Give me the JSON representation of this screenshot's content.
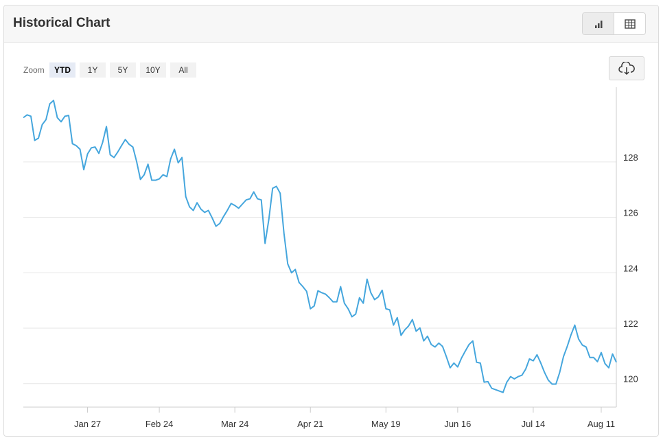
{
  "header": {
    "title": "Historical Chart"
  },
  "zoom": {
    "label": "Zoom",
    "options": [
      "YTD",
      "1Y",
      "5Y",
      "10Y",
      "All"
    ],
    "selected": "YTD"
  },
  "chart_data": {
    "type": "line",
    "color": "#45a6dd",
    "grid": true,
    "y_axis_side": "right",
    "ylim": [
      119.15,
      130.7
    ],
    "yticks": [
      120,
      122,
      124,
      126,
      128
    ],
    "categories": [
      null,
      null,
      null,
      null,
      null,
      null,
      null,
      null,
      null,
      null,
      null,
      null,
      null,
      null,
      null,
      null,
      null,
      "Jan 27",
      null,
      null,
      null,
      null,
      null,
      null,
      null,
      null,
      null,
      null,
      null,
      null,
      null,
      null,
      null,
      null,
      null,
      null,
      "Feb 24",
      null,
      null,
      null,
      null,
      null,
      null,
      null,
      null,
      null,
      null,
      null,
      null,
      null,
      null,
      null,
      null,
      null,
      null,
      null,
      "Mar 24",
      null,
      null,
      null,
      null,
      null,
      null,
      null,
      null,
      null,
      null,
      null,
      null,
      null,
      null,
      null,
      null,
      null,
      null,
      null,
      "Apr 21",
      null,
      null,
      null,
      null,
      null,
      null,
      null,
      null,
      null,
      null,
      null,
      null,
      null,
      null,
      null,
      null,
      null,
      null,
      null,
      "May 19",
      null,
      null,
      null,
      null,
      null,
      null,
      null,
      null,
      null,
      null,
      null,
      null,
      null,
      null,
      null,
      null,
      null,
      null,
      "Jun 16",
      null,
      null,
      null,
      null,
      null,
      null,
      null,
      null,
      null,
      null,
      null,
      null,
      null,
      null,
      null,
      null,
      null,
      null,
      null,
      "Jul 14",
      null,
      null,
      null,
      null,
      null,
      null,
      null,
      null,
      null,
      null,
      null,
      null,
      null,
      null,
      null,
      null,
      null,
      "Aug 11",
      null,
      null,
      null,
      null
    ],
    "values": [
      129.6,
      129.7,
      129.65,
      128.78,
      128.86,
      129.35,
      129.53,
      130.1,
      130.22,
      129.6,
      129.45,
      129.65,
      129.68,
      128.66,
      128.59,
      128.46,
      127.72,
      128.29,
      128.51,
      128.54,
      128.31,
      128.71,
      129.28,
      128.26,
      128.16,
      128.36,
      128.59,
      128.81,
      128.64,
      128.54,
      128.01,
      127.37,
      127.54,
      127.92,
      127.34,
      127.34,
      127.39,
      127.54,
      127.47,
      128.11,
      128.46,
      127.97,
      128.16,
      126.75,
      126.38,
      126.25,
      126.53,
      126.3,
      126.18,
      126.25,
      125.98,
      125.68,
      125.78,
      126.03,
      126.25,
      126.5,
      126.43,
      126.33,
      126.48,
      126.63,
      126.67,
      126.92,
      126.67,
      126.63,
      125.06,
      125.93,
      127.05,
      127.12,
      126.87,
      125.43,
      124.32,
      124.0,
      124.12,
      123.65,
      123.5,
      123.33,
      122.7,
      122.8,
      123.35,
      123.28,
      123.23,
      123.1,
      122.95,
      122.95,
      123.5,
      122.9,
      122.7,
      122.41,
      122.51,
      123.1,
      122.9,
      123.77,
      123.28,
      123.03,
      123.13,
      123.37,
      122.7,
      122.66,
      122.11,
      122.38,
      121.74,
      121.94,
      122.08,
      122.31,
      121.89,
      122.01,
      121.54,
      121.71,
      121.41,
      121.32,
      121.46,
      121.34,
      120.97,
      120.57,
      120.74,
      120.6,
      120.92,
      121.17,
      121.41,
      121.54,
      120.77,
      120.74,
      120.05,
      120.07,
      119.83,
      119.78,
      119.73,
      119.68,
      120.05,
      120.25,
      120.17,
      120.25,
      120.3,
      120.52,
      120.89,
      120.82,
      121.04,
      120.74,
      120.4,
      120.12,
      119.98,
      119.98,
      120.4,
      120.97,
      121.34,
      121.76,
      122.11,
      121.61,
      121.39,
      121.32,
      120.94,
      120.94,
      120.79,
      121.12,
      120.72,
      120.57,
      121.07,
      120.77
    ]
  }
}
